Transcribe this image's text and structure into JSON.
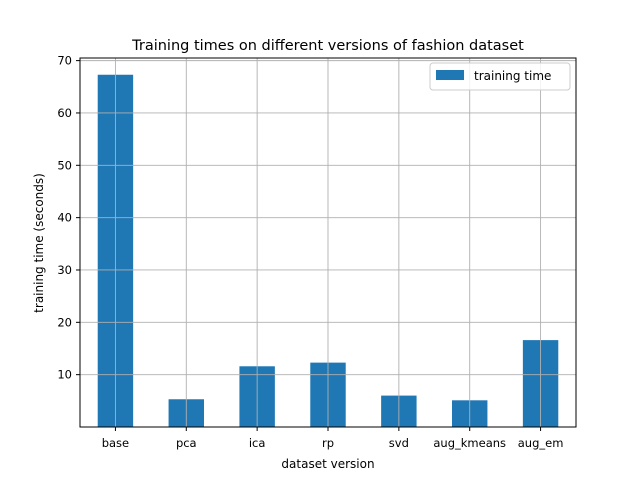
{
  "chart_data": {
    "type": "bar",
    "title": "Training times on different versions of fashion dataset",
    "xlabel": "dataset version",
    "ylabel": "training time (seconds)",
    "categories": [
      "base",
      "pca",
      "ica",
      "rp",
      "svd",
      "aug_kmeans",
      "aug_em"
    ],
    "series": [
      {
        "name": "training time",
        "values": [
          67.3,
          5.3,
          11.6,
          12.3,
          6.0,
          5.1,
          16.6
        ]
      }
    ],
    "ylim": [
      0,
      70.5
    ],
    "yticks": [
      10,
      20,
      30,
      40,
      50,
      60,
      70
    ],
    "grid": true,
    "legend_position": "top-right",
    "bar_color": "#1f77b4",
    "grid_color": "#b0b0b0"
  }
}
